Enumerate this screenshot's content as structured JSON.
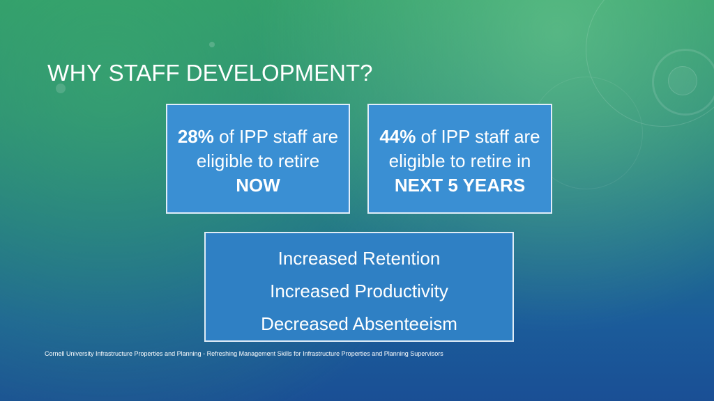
{
  "slide": {
    "title_prefix": "WHY ",
    "title_main": "STAFF DEVELOPMENT?"
  },
  "stats": [
    {
      "percent": "28%",
      "text_a": " of IPP staff are",
      "text_b": "eligible to retire",
      "emphasis": "NOW"
    },
    {
      "percent": "44%",
      "text_a": " of IPP staff are",
      "text_b": "eligible to retire in",
      "emphasis": "NEXT 5 YEARS"
    }
  ],
  "benefits": [
    "Increased Retention",
    "Increased Productivity",
    "Decreased Absenteeism"
  ],
  "footer": "Cornell University Infrastructure Properties and Planning - Refreshing Management Skills for Infrastructure Properties and Planning Supervisors",
  "colors": {
    "stat_box": "#3a8fd3",
    "benefit_box": "#2f80c4",
    "text": "#ffffff"
  }
}
